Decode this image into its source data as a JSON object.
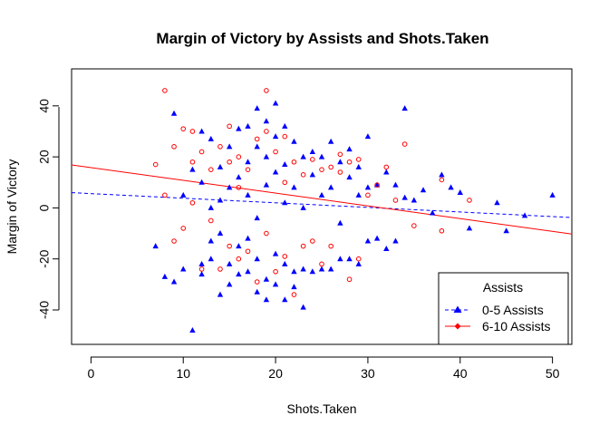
{
  "chart_data": {
    "type": "scatter",
    "title": "Margin of Victory by Assists and Shots.Taken",
    "xlabel": "Shots.Taken",
    "ylabel": "Margin of Victory",
    "xlim": [
      -2.1,
      52.1
    ],
    "ylim": [
      -53.5,
      54.5
    ],
    "xticks": [
      0,
      10,
      20,
      30,
      40,
      50
    ],
    "yticks": [
      -40,
      -20,
      0,
      20,
      40
    ],
    "x_tick_labels": [
      "0",
      "10",
      "20",
      "30",
      "40",
      "50"
    ],
    "y_tick_labels": [
      "-40",
      "-20",
      "0",
      "20",
      "40"
    ],
    "grid": false,
    "legend": {
      "title": "Assists",
      "position": "bottom-right",
      "entries": [
        "0-5 Assists",
        "6-10 Assists"
      ]
    },
    "series": [
      {
        "name": "0-5 Assists",
        "color": "#0000ff",
        "marker": "triangle",
        "trend_line": {
          "style": "dashed",
          "intercept": 5.6,
          "slope": -0.18
        },
        "points": [
          [
            7,
            -15
          ],
          [
            8,
            -27
          ],
          [
            9,
            -29
          ],
          [
            9,
            37
          ],
          [
            10,
            -24
          ],
          [
            10,
            5
          ],
          [
            11,
            -48
          ],
          [
            11,
            15
          ],
          [
            12,
            -26
          ],
          [
            12,
            -22
          ],
          [
            12,
            30
          ],
          [
            12,
            10
          ],
          [
            13,
            -20
          ],
          [
            13,
            -13
          ],
          [
            13,
            27
          ],
          [
            13,
            0
          ],
          [
            14,
            -34
          ],
          [
            14,
            -10
          ],
          [
            14,
            16
          ],
          [
            14,
            3
          ],
          [
            15,
            -30
          ],
          [
            15,
            -22
          ],
          [
            15,
            24
          ],
          [
            15,
            8
          ],
          [
            16,
            -26
          ],
          [
            16,
            -15
          ],
          [
            16,
            31
          ],
          [
            16,
            12
          ],
          [
            17,
            -25
          ],
          [
            17,
            -12
          ],
          [
            17,
            32
          ],
          [
            17,
            18
          ],
          [
            17,
            5
          ],
          [
            18,
            -33
          ],
          [
            18,
            -20
          ],
          [
            18,
            39
          ],
          [
            18,
            24
          ],
          [
            18,
            -4
          ],
          [
            19,
            -36
          ],
          [
            19,
            -28
          ],
          [
            19,
            34
          ],
          [
            19,
            20
          ],
          [
            19,
            9
          ],
          [
            20,
            -30
          ],
          [
            20,
            -18
          ],
          [
            20,
            41
          ],
          [
            20,
            28
          ],
          [
            20,
            14
          ],
          [
            21,
            -36
          ],
          [
            21,
            -22
          ],
          [
            21,
            32
          ],
          [
            21,
            17
          ],
          [
            21,
            2
          ],
          [
            22,
            -31
          ],
          [
            22,
            -25
          ],
          [
            22,
            26
          ],
          [
            22,
            8
          ],
          [
            23,
            -39
          ],
          [
            23,
            -24
          ],
          [
            23,
            20
          ],
          [
            23,
            0
          ],
          [
            24,
            -25
          ],
          [
            24,
            22
          ],
          [
            24,
            13
          ],
          [
            25,
            -24
          ],
          [
            25,
            20
          ],
          [
            25,
            5
          ],
          [
            26,
            -24
          ],
          [
            26,
            26
          ],
          [
            26,
            8
          ],
          [
            27,
            -20
          ],
          [
            27,
            18
          ],
          [
            27,
            -6
          ],
          [
            28,
            -20
          ],
          [
            28,
            23
          ],
          [
            28,
            12
          ],
          [
            29,
            -22
          ],
          [
            29,
            16
          ],
          [
            29,
            5
          ],
          [
            30,
            -13
          ],
          [
            30,
            28
          ],
          [
            30,
            8
          ],
          [
            31,
            -12
          ],
          [
            31,
            9
          ],
          [
            32,
            -16
          ],
          [
            32,
            14
          ],
          [
            33,
            -13
          ],
          [
            33,
            9
          ],
          [
            34,
            39
          ],
          [
            34,
            4
          ],
          [
            35,
            3
          ],
          [
            36,
            7
          ],
          [
            37,
            -2
          ],
          [
            38,
            13
          ],
          [
            39,
            8
          ],
          [
            40,
            6
          ],
          [
            41,
            -8
          ],
          [
            44,
            2
          ],
          [
            45,
            -9
          ],
          [
            47,
            -3
          ],
          [
            50,
            5
          ]
        ]
      },
      {
        "name": "6-10 Assists",
        "color": "#ff0000",
        "marker": "circle",
        "trend_line": {
          "style": "solid",
          "intercept": 15.8,
          "slope": -0.5
        },
        "points": [
          [
            7,
            17
          ],
          [
            8,
            46
          ],
          [
            8,
            5
          ],
          [
            9,
            24
          ],
          [
            9,
            -13
          ],
          [
            10,
            31
          ],
          [
            10,
            -8
          ],
          [
            11,
            30
          ],
          [
            11,
            18
          ],
          [
            11,
            2
          ],
          [
            12,
            22
          ],
          [
            12,
            -24
          ],
          [
            13,
            15
          ],
          [
            13,
            -5
          ],
          [
            14,
            24
          ],
          [
            14,
            -24
          ],
          [
            15,
            32
          ],
          [
            15,
            18
          ],
          [
            15,
            -15
          ],
          [
            16,
            20
          ],
          [
            16,
            8
          ],
          [
            16,
            -20
          ],
          [
            17,
            15
          ],
          [
            17,
            -17
          ],
          [
            18,
            27
          ],
          [
            18,
            -29
          ],
          [
            19,
            46
          ],
          [
            19,
            30
          ],
          [
            19,
            -10
          ],
          [
            20,
            22
          ],
          [
            20,
            -25
          ],
          [
            21,
            28
          ],
          [
            21,
            10
          ],
          [
            21,
            -19
          ],
          [
            22,
            18
          ],
          [
            22,
            -34
          ],
          [
            23,
            13
          ],
          [
            23,
            -15
          ],
          [
            24,
            19
          ],
          [
            24,
            -13
          ],
          [
            25,
            15
          ],
          [
            25,
            -22
          ],
          [
            26,
            16
          ],
          [
            26,
            -15
          ],
          [
            27,
            14
          ],
          [
            27,
            21
          ],
          [
            28,
            18
          ],
          [
            28,
            -28
          ],
          [
            29,
            19
          ],
          [
            29,
            -20
          ],
          [
            30,
            5
          ],
          [
            31,
            9
          ],
          [
            32,
            16
          ],
          [
            33,
            3
          ],
          [
            34,
            25
          ],
          [
            35,
            -7
          ],
          [
            38,
            -9
          ],
          [
            38,
            11
          ],
          [
            41,
            3
          ]
        ]
      }
    ]
  }
}
